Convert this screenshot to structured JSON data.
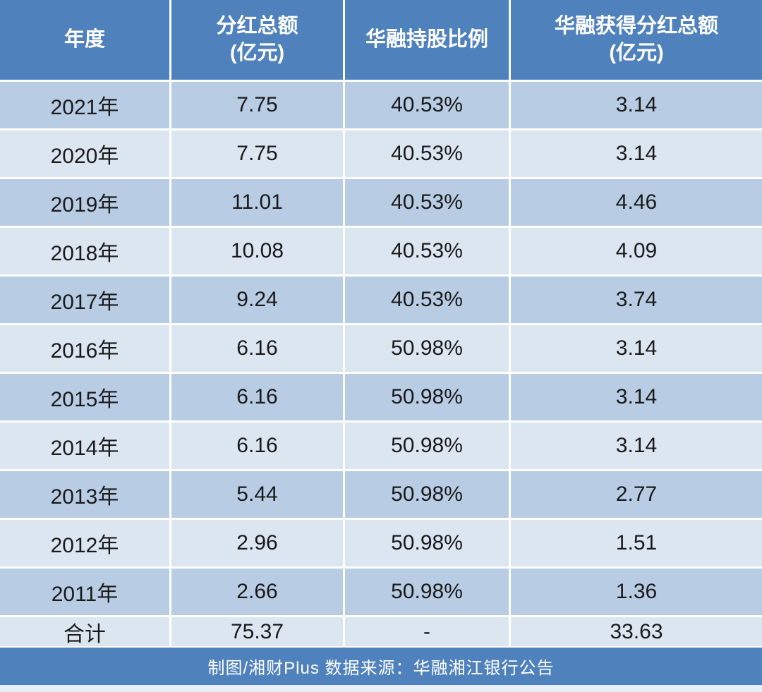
{
  "table": {
    "headers": [
      {
        "label": "年度",
        "sub": ""
      },
      {
        "label": "分红总额",
        "sub": "(亿元)"
      },
      {
        "label": "华融持股比例",
        "sub": ""
      },
      {
        "label": "华融获得分红总额",
        "sub": "(亿元)"
      }
    ],
    "rows": [
      {
        "year": "2021年",
        "total_dividend": "7.75",
        "huarong_ratio": "40.53%",
        "huarong_dividend": "3.14"
      },
      {
        "year": "2020年",
        "total_dividend": "7.75",
        "huarong_ratio": "40.53%",
        "huarong_dividend": "3.14"
      },
      {
        "year": "2019年",
        "total_dividend": "11.01",
        "huarong_ratio": "40.53%",
        "huarong_dividend": "4.46"
      },
      {
        "year": "2018年",
        "total_dividend": "10.08",
        "huarong_ratio": "40.53%",
        "huarong_dividend": "4.09"
      },
      {
        "year": "2017年",
        "total_dividend": "9.24",
        "huarong_ratio": "40.53%",
        "huarong_dividend": "3.74"
      },
      {
        "year": "2016年",
        "total_dividend": "6.16",
        "huarong_ratio": "50.98%",
        "huarong_dividend": "3.14"
      },
      {
        "year": "2015年",
        "total_dividend": "6.16",
        "huarong_ratio": "50.98%",
        "huarong_dividend": "3.14"
      },
      {
        "year": "2014年",
        "total_dividend": "6.16",
        "huarong_ratio": "50.98%",
        "huarong_dividend": "3.14"
      },
      {
        "year": "2013年",
        "total_dividend": "5.44",
        "huarong_ratio": "50.98%",
        "huarong_dividend": "2.77"
      },
      {
        "year": "2012年",
        "total_dividend": "2.96",
        "huarong_ratio": "50.98%",
        "huarong_dividend": "1.51"
      },
      {
        "year": "2011年",
        "total_dividend": "2.66",
        "huarong_ratio": "50.98%",
        "huarong_dividend": "1.36"
      }
    ],
    "total_row": {
      "year": "合计",
      "total_dividend": "75.37",
      "huarong_ratio": "-",
      "huarong_dividend": "33.63"
    }
  },
  "footer": {
    "credit": "制图/湘财Plus 数据来源：华融湘江银行公告"
  },
  "colors": {
    "header_bg": "#4f81bd",
    "row_dark": "#b8cce4",
    "row_light": "#dce6f1",
    "footer_bg": "#4f81bd",
    "text": "#1a1a1a",
    "header_text": "#ffffff"
  },
  "chart_data": {
    "type": "table",
    "title": "",
    "columns": [
      "年度",
      "分红总额(亿元)",
      "华融持股比例",
      "华融获得分红总额(亿元)"
    ],
    "rows": [
      [
        "2021年",
        "7.75",
        "40.53%",
        "3.14"
      ],
      [
        "2020年",
        "7.75",
        "40.53%",
        "3.14"
      ],
      [
        "2019年",
        "11.01",
        "40.53%",
        "4.46"
      ],
      [
        "2018年",
        "10.08",
        "40.53%",
        "4.09"
      ],
      [
        "2017年",
        "9.24",
        "40.53%",
        "3.74"
      ],
      [
        "2016年",
        "6.16",
        "50.98%",
        "3.14"
      ],
      [
        "2015年",
        "6.16",
        "50.98%",
        "3.14"
      ],
      [
        "2014年",
        "6.16",
        "50.98%",
        "3.14"
      ],
      [
        "2013年",
        "5.44",
        "50.98%",
        "2.77"
      ],
      [
        "2012年",
        "2.96",
        "50.98%",
        "1.51"
      ],
      [
        "2011年",
        "2.66",
        "50.98%",
        "1.36"
      ],
      [
        "合计",
        "75.37",
        "-",
        "33.63"
      ]
    ],
    "source_note": "制图/湘财Plus 数据来源：华融湘江银行公告"
  }
}
